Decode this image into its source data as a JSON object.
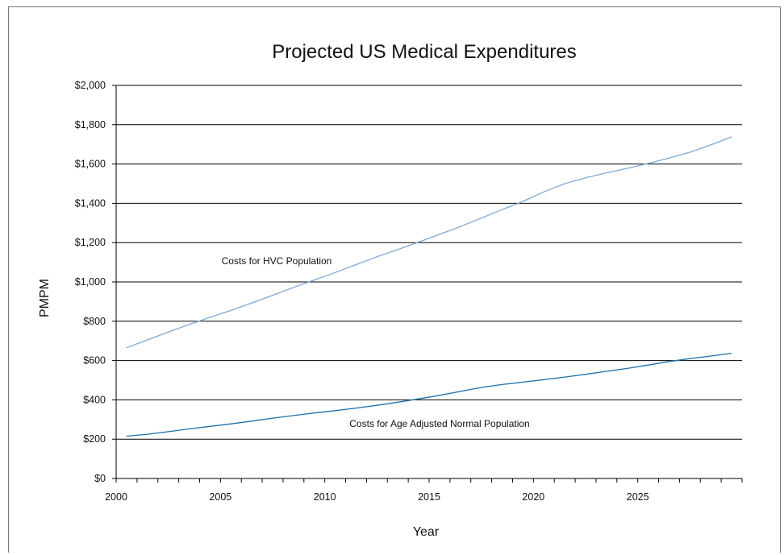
{
  "chart_data": {
    "type": "line",
    "title": "Projected US Medical Expenditures",
    "xlabel": "Year",
    "ylabel": "PMPM",
    "xlim": [
      2000,
      2030
    ],
    "ylim": [
      0,
      2000
    ],
    "y_ticks": [
      "$0",
      "$200",
      "$400",
      "$600",
      "$800",
      "$1,000",
      "$1,200",
      "$1,400",
      "$1,600",
      "$1,800",
      "$2,000"
    ],
    "x_ticks": [
      "2000",
      "2005",
      "2010",
      "2015",
      "2020",
      "2025"
    ],
    "grid": true,
    "legend": "none",
    "annotations": [
      {
        "text": "Costs for HVC Population",
        "series": 0
      },
      {
        "text": "Costs for Age Adjusted Normal Population",
        "series": 1
      }
    ],
    "x": [
      2000,
      2001,
      2002,
      2003,
      2004,
      2005,
      2006,
      2007,
      2008,
      2009,
      2010,
      2011,
      2012,
      2013,
      2014,
      2015,
      2016,
      2017,
      2018,
      2019,
      2020,
      2021,
      2022,
      2023,
      2024,
      2025,
      2026,
      2027,
      2028,
      2029
    ],
    "series": [
      {
        "color": "#7fa8d6",
        "values": [
          665,
          705,
          745,
          783,
          820,
          855,
          893,
          932,
          972,
          1010,
          1048,
          1088,
          1128,
          1165,
          1203,
          1242,
          1282,
          1325,
          1368,
          1410,
          1458,
          1500,
          1530,
          1555,
          1578,
          1603,
          1630,
          1660,
          1697,
          1738
        ]
      },
      {
        "color": "#1f6fa8",
        "values": [
          215,
          225,
          238,
          252,
          265,
          278,
          292,
          307,
          320,
          333,
          345,
          358,
          372,
          388,
          405,
          423,
          443,
          463,
          478,
          490,
          503,
          516,
          530,
          545,
          560,
          577,
          595,
          610,
          623,
          637
        ]
      }
    ]
  }
}
